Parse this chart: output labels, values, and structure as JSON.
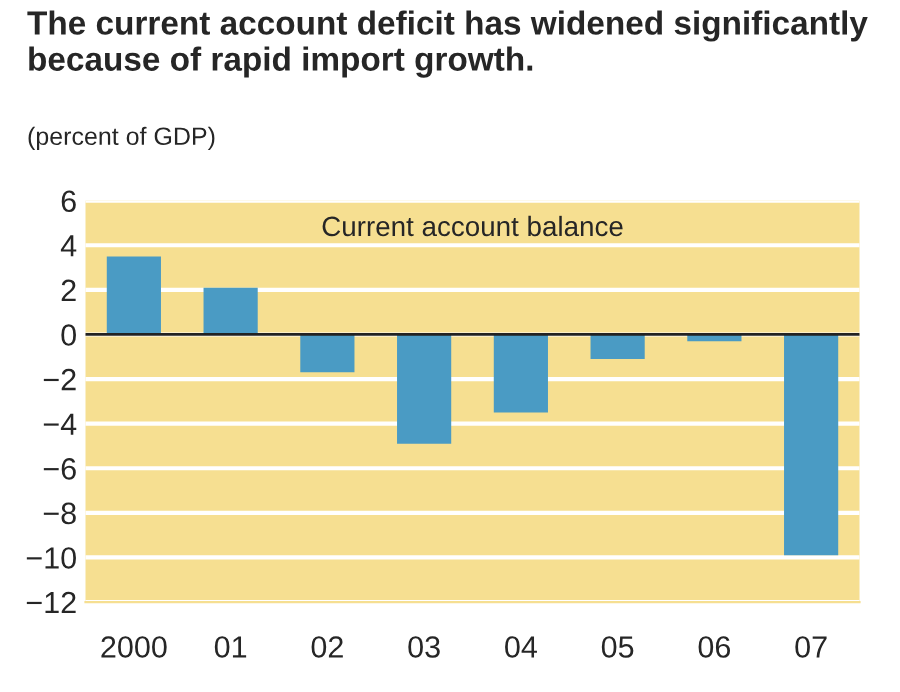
{
  "chart_data": {
    "type": "bar",
    "title": "The current account deficit has widened significantly because of rapid import growth.",
    "subtitle": "(percent of GDP)",
    "annotations": [
      "Current account balance"
    ],
    "categories": [
      "2000",
      "01",
      "02",
      "03",
      "04",
      "05",
      "06",
      "07"
    ],
    "series": [
      {
        "color": "#4a9bc4",
        "values": [
          3.5,
          2.1,
          -1.7,
          -4.9,
          -3.5,
          -1.1,
          -0.3,
          -9.9
        ]
      }
    ],
    "ylim": [
      -12,
      6
    ],
    "yticks": [
      -12,
      -10,
      -8,
      -6,
      -4,
      -2,
      0,
      2,
      4,
      6
    ],
    "grid": "y"
  }
}
